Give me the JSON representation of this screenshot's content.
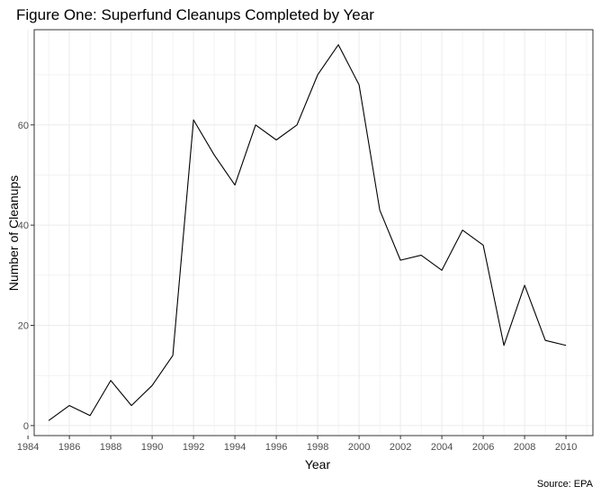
{
  "chart_data": {
    "type": "line",
    "title": "Figure One: Superfund Cleanups Completed by Year",
    "xlabel": "Year",
    "ylabel": "Number of Cleanups",
    "caption": "Source: EPA",
    "x": [
      1985,
      1986,
      1987,
      1988,
      1989,
      1990,
      1991,
      1992,
      1993,
      1994,
      1995,
      1996,
      1997,
      1998,
      1999,
      2000,
      2001,
      2002,
      2003,
      2004,
      2005,
      2006,
      2007,
      2008,
      2009,
      2010
    ],
    "series": [
      {
        "values": [
          1,
          4,
          2,
          9,
          4,
          8,
          14,
          61,
          54,
          48,
          60,
          57,
          60,
          70,
          76,
          68,
          43,
          33,
          34,
          31,
          39,
          36,
          16,
          28,
          17,
          16
        ]
      }
    ],
    "xlim": [
      1984.3,
      2011.3
    ],
    "ylim": [
      -2,
      79
    ],
    "x_ticks": [
      "1984",
      "1986",
      "1988",
      "1990",
      "1992",
      "1994",
      "1996",
      "1998",
      "2000",
      "2002",
      "2004",
      "2006",
      "2008",
      "2010"
    ],
    "y_ticks": [
      "0",
      "20",
      "40",
      "60"
    ],
    "grid": true,
    "line_color": "#000000",
    "grid_color": "#ebebeb"
  }
}
